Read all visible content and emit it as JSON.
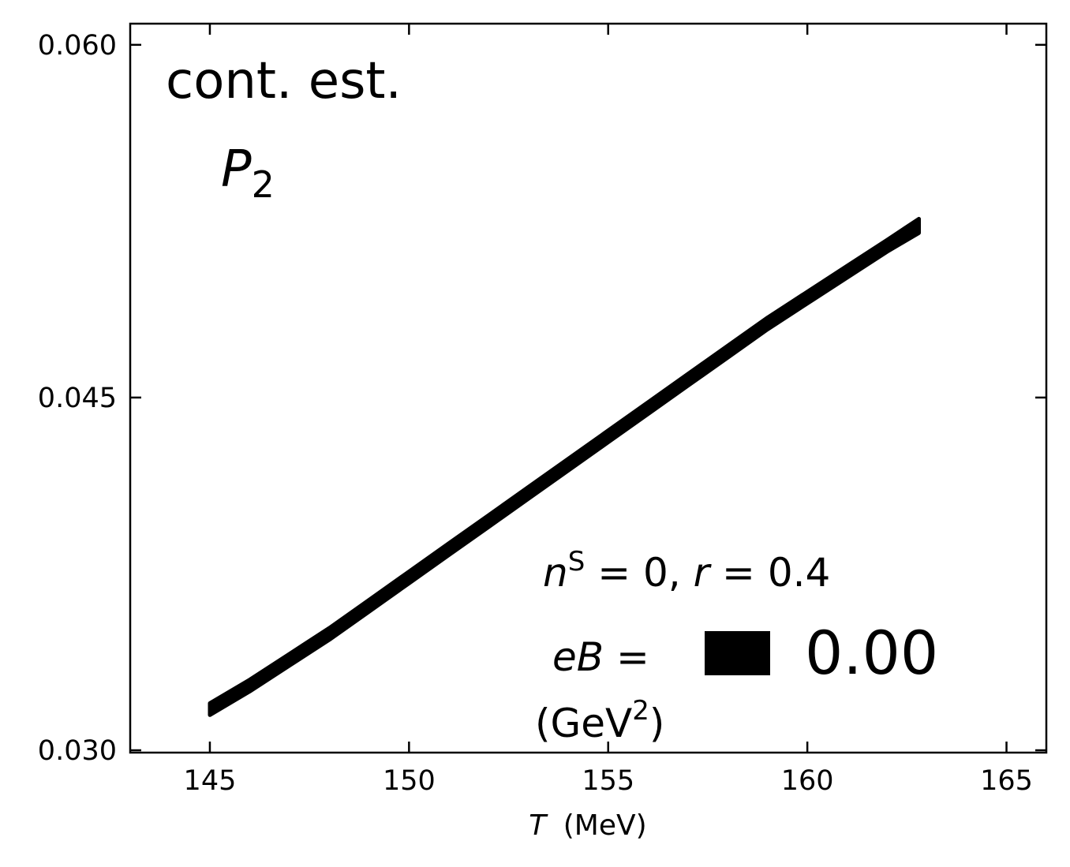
{
  "chart_data": {
    "type": "area",
    "title": "",
    "xlabel": "T",
    "xlabel_unit": "(MeV)",
    "ylabel": "",
    "xlim": [
      143.0,
      166.0
    ],
    "ylim": [
      0.0299,
      0.0609
    ],
    "xticks": [
      145,
      150,
      155,
      160,
      165
    ],
    "yticks": [
      0.03,
      0.045,
      0.06
    ],
    "xtick_labels": [
      "145",
      "150",
      "155",
      "160",
      "165"
    ],
    "ytick_labels": [
      "0.030",
      "0.045",
      "0.060"
    ],
    "grid": false,
    "series": [
      {
        "color": "#000000",
        "x": [
          145,
          146,
          147,
          148,
          149,
          150,
          151,
          152,
          153,
          154,
          155,
          156,
          157,
          158,
          159,
          160,
          161,
          162,
          162.8
        ],
        "lower": [
          0.0315,
          0.0325,
          0.0336,
          0.0347,
          0.0359,
          0.0371,
          0.0383,
          0.0395,
          0.0407,
          0.0419,
          0.0431,
          0.0443,
          0.0455,
          0.0467,
          0.0479,
          0.049,
          0.0501,
          0.0512,
          0.052
        ],
        "upper": [
          0.032,
          0.033,
          0.0341,
          0.0352,
          0.0364,
          0.0376,
          0.0388,
          0.04,
          0.0412,
          0.0424,
          0.0436,
          0.0448,
          0.046,
          0.0472,
          0.0484,
          0.0495,
          0.0506,
          0.0517,
          0.0526
        ]
      }
    ],
    "annotations": {
      "cont_est": "cont. est.",
      "p2_main": "P",
      "p2_sub": "2",
      "ns_n": "n",
      "ns_sup": "S",
      "ns_eq": " = 0,  ",
      "ns_r": "r",
      "ns_r_eq": " = 0.4",
      "eb_e": "eB",
      "eb_eq": " = ",
      "eb_value": "0.00",
      "eb_unit_open": "(GeV",
      "eb_unit_sup": "2",
      "eb_unit_close": ")"
    },
    "legend_placement": "bottom-right"
  }
}
